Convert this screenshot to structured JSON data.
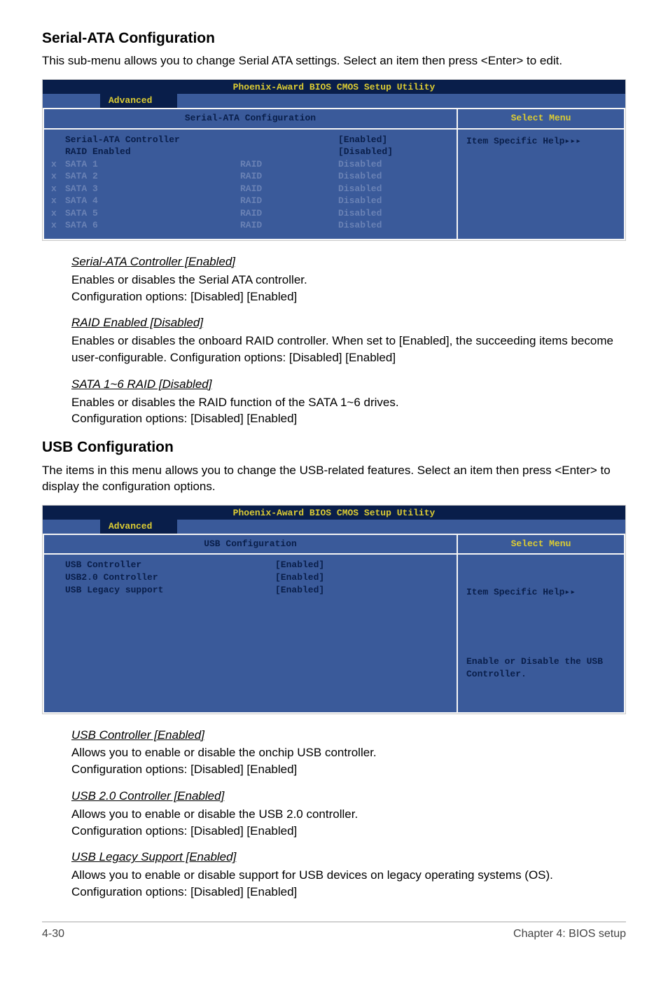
{
  "colors": {
    "bios_dark": "#091e4a",
    "bios_mid": "#3a5a9a",
    "bios_dim": "#6a82b5",
    "bios_yellow": "#dccc33",
    "bios_border": "#f5f5f5"
  },
  "section1": {
    "title": "Serial-ATA Configuration",
    "intro": "This sub-menu allows you to change Serial ATA settings. Select an item then press <Enter> to edit."
  },
  "bios1": {
    "title": "Phoenix-Award BIOS CMOS Setup Utility",
    "active_tab": "Advanced",
    "left_header": "Serial-ATA Configuration",
    "right_header": "Select Menu",
    "help_text": "Item Specific Help▸▸▸",
    "rows": [
      {
        "x": "",
        "label": "Serial-ATA Controller",
        "mid": "",
        "val": "[Enabled]",
        "bold": true
      },
      {
        "x": "",
        "label": "RAID Enabled",
        "mid": "",
        "val": "[Disabled]",
        "bold": true
      },
      {
        "x": "x",
        "label": "SATA 1",
        "mid": "RAID",
        "val": "Disabled",
        "bold": false
      },
      {
        "x": "x",
        "label": "SATA 2",
        "mid": "RAID",
        "val": "Disabled",
        "bold": false
      },
      {
        "x": "x",
        "label": "SATA 3",
        "mid": "RAID",
        "val": "Disabled",
        "bold": false
      },
      {
        "x": "x",
        "label": "SATA 4",
        "mid": "RAID",
        "val": "Disabled",
        "bold": false
      },
      {
        "x": "x",
        "label": "SATA 5",
        "mid": "RAID",
        "val": "Disabled",
        "bold": false
      },
      {
        "x": "x",
        "label": "SATA 6",
        "mid": "RAID",
        "val": "Disabled",
        "bold": false
      }
    ]
  },
  "explain1": {
    "items": [
      {
        "heading": "Serial-ATA Controller [Enabled]",
        "body": "Enables or disables the Serial ATA controller.\nConfiguration options: [Disabled] [Enabled]"
      },
      {
        "heading": "RAID Enabled [Disabled]",
        "body": "Enables or disables the onboard RAID controller. When set to [Enabled], the succeeding items become user-configurable. Configuration options: [Disabled] [Enabled]"
      },
      {
        "heading": "SATA 1~6 RAID [Disabled]",
        "body": "Enables or disables the RAID function of the SATA 1~6 drives.\nConfiguration options: [Disabled] [Enabled]"
      }
    ]
  },
  "section2": {
    "title": "USB Configuration",
    "intro": "The items in this menu allows you to change the USB-related features. Select an item then press <Enter> to display the configuration options."
  },
  "bios2": {
    "title": "Phoenix-Award BIOS CMOS Setup Utility",
    "active_tab": "Advanced",
    "left_header": "USB Configuration",
    "right_header": "Select Menu",
    "help_line1": "Item Specific Help▸▸",
    "help_line2": "Enable or Disable the USB Controller.",
    "rows": [
      {
        "label": "USB Controller",
        "val": "[Enabled]"
      },
      {
        "label": "USB2.0 Controller",
        "val": "[Enabled]"
      },
      {
        "label": "USB Legacy support",
        "val": "[Enabled]"
      }
    ]
  },
  "explain2": {
    "items": [
      {
        "heading": "USB Controller [Enabled]",
        "body": "Allows you to enable or disable the onchip USB controller.\nConfiguration options: [Disabled] [Enabled]"
      },
      {
        "heading": "USB 2.0 Controller [Enabled]",
        "body": "Allows you to enable or disable the USB 2.0 controller.\nConfiguration options: [Disabled] [Enabled]"
      },
      {
        "heading": "USB Legacy Support [Enabled]",
        "body": "Allows you to enable or disable support for USB devices on legacy operating systems (OS). Configuration options: [Disabled] [Enabled]"
      }
    ]
  },
  "footer": {
    "left": "4-30",
    "right": "Chapter 4: BIOS setup"
  }
}
